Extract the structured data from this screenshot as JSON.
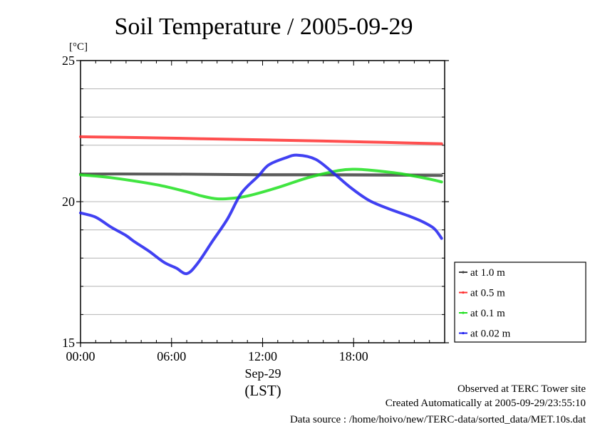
{
  "chart_data": {
    "type": "line",
    "title": "Soil Temperature / 2005-09-29",
    "ylabel": "[°C]",
    "xlabel_date": "Sep-29",
    "xlabel_tz": "(LST)",
    "xlim": [
      0,
      24
    ],
    "ylim": [
      15,
      25
    ],
    "yticks": [
      {
        "v": 25,
        "label": "25"
      },
      {
        "v": 20,
        "label": "20"
      },
      {
        "v": 15,
        "label": "15"
      }
    ],
    "xticks": [
      {
        "v": 0,
        "label": "00:00"
      },
      {
        "v": 6,
        "label": "06:00"
      },
      {
        "v": 12,
        "label": "12:00"
      },
      {
        "v": 18,
        "label": "18:00"
      }
    ],
    "grid": true,
    "legend_position": "right",
    "series": [
      {
        "name": "at 1.0 m",
        "color": "#404040",
        "x": [
          0,
          4,
          8,
          12,
          16,
          20,
          23.8
        ],
        "values": [
          20.98,
          20.98,
          20.97,
          20.95,
          20.95,
          20.94,
          20.93
        ]
      },
      {
        "name": "at 0.5 m",
        "color": "#ff3030",
        "x": [
          0,
          4,
          8,
          12,
          16,
          20,
          23.8
        ],
        "values": [
          22.3,
          22.27,
          22.23,
          22.19,
          22.15,
          22.1,
          22.05
        ]
      },
      {
        "name": "at 0.1 m",
        "color": "#20e020",
        "x": [
          0,
          2,
          5,
          7,
          8,
          9,
          10,
          11,
          13,
          15,
          17,
          18,
          19,
          21,
          23,
          23.8
        ],
        "values": [
          20.95,
          20.85,
          20.6,
          20.35,
          20.2,
          20.1,
          20.12,
          20.2,
          20.5,
          20.85,
          21.1,
          21.15,
          21.12,
          21.0,
          20.8,
          20.7
        ]
      },
      {
        "name": "at 0.02 m",
        "color": "#2020f0",
        "x": [
          0,
          1,
          2,
          3,
          3.5,
          4.5,
          5.5,
          6.3,
          7,
          7.7,
          8.7,
          9.7,
          10.6,
          11.7,
          12.4,
          13.5,
          14.3,
          15.5,
          16.7,
          17.8,
          19,
          20.3,
          21.6,
          22.5,
          23.3,
          23.8
        ],
        "values": [
          19.6,
          19.45,
          19.1,
          18.8,
          18.6,
          18.25,
          17.85,
          17.65,
          17.45,
          17.8,
          18.6,
          19.4,
          20.3,
          20.9,
          21.3,
          21.55,
          21.65,
          21.5,
          21.0,
          20.5,
          20.05,
          19.75,
          19.5,
          19.3,
          19.05,
          18.7
        ]
      }
    ]
  },
  "footer": {
    "site": "Observed at TERC Tower site",
    "created": "Created Automatically at 2005-09-29/23:55:10",
    "source": "Data source : /home/hoivo/new/TERC-data/sorted_data/MET.10s.dat"
  }
}
